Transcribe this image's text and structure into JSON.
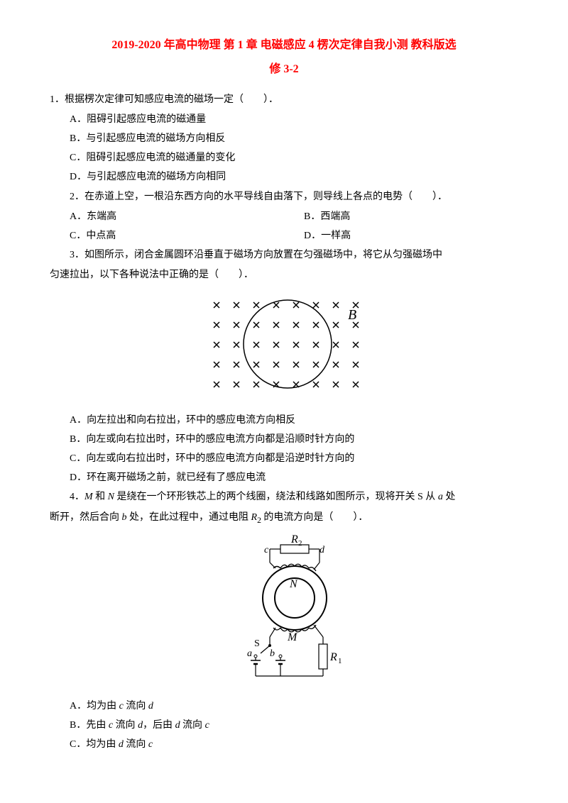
{
  "title_prefix": "2019-2020",
  "title_main": " 年高中物理 第 1 章 电磁感应 4 楞次定律自我小测 教科版选",
  "subtitle": "修 3-2",
  "q1": {
    "text": "1．根据楞次定律可知感应电流的磁场一定（　　）．",
    "a": "A．阻碍引起感应电流的磁通量",
    "b": "B．与引起感应电流的磁场方向相反",
    "c": "C．阻碍引起感应电流的磁通量的变化",
    "d": "D．与引起感应电流的磁场方向相同"
  },
  "q2": {
    "text": "2．在赤道上空，一根沿东西方向的水平导线自由落下，则导线上各点的电势（　　）．",
    "a": "A．东端高",
    "b": "B．西端高",
    "c": "C．中点高",
    "d": "D．一样高"
  },
  "q3": {
    "text": "3．如图所示，闭合金属圆环沿垂直于磁场方向放置在匀强磁场中，将它从匀强磁场中",
    "text2": "匀速拉出，以下各种说法中正确的是（　　）．",
    "a": "A．向左拉出和向右拉出，环中的感应电流方向相反",
    "b": "B．向左或向右拉出时，环中的感应电流方向都是沿顺时针方向的",
    "c": "C．向左或向右拉出时，环中的感应电流方向都是沿逆时针方向的",
    "d": "D．环在离开磁场之前，就已经有了感应电流",
    "figure": {
      "label_B": "B",
      "cross_rows": 5,
      "cross_cols": 8,
      "circle_stroke": "#000000",
      "label_fontsize": 18
    }
  },
  "q4": {
    "text_part1": "4．",
    "text_M": "M",
    "text_part2": " 和 ",
    "text_N": "N",
    "text_part3": " 是绕在一个环形铁芯上的两个线圈，绕法和线路如图所示，现将开关 S 从 ",
    "text_a": "a",
    "text_part4": " 处",
    "text2_part1": "断开，然后合向 ",
    "text2_b": "b",
    "text2_part2": " 处，在此过程中，通过电阻 ",
    "text2_R2": "R",
    "text2_sub2": "2",
    "text2_part3": " 的电流方向是（　　）．",
    "a_part1": "A．均为由 ",
    "a_c": "c",
    "a_part2": " 流向 ",
    "a_d": "d",
    "b_part1": "B．先由 ",
    "b_c": "c",
    "b_part2": " 流向 ",
    "b_d1": "d",
    "b_part3": "，后由 ",
    "b_d2": "d",
    "b_part4": " 流向 ",
    "b_c2": "c",
    "c_part1": "C．均为由 ",
    "c_d": "d",
    "c_part2": " 流向 ",
    "c_c": "c",
    "figure": {
      "R2": "R",
      "R2_sub": "2",
      "R1": "R",
      "R1_sub": "1",
      "N": "N",
      "M": "M",
      "S": "S",
      "a": "a",
      "b": "b",
      "c": "c",
      "d": "d"
    }
  }
}
